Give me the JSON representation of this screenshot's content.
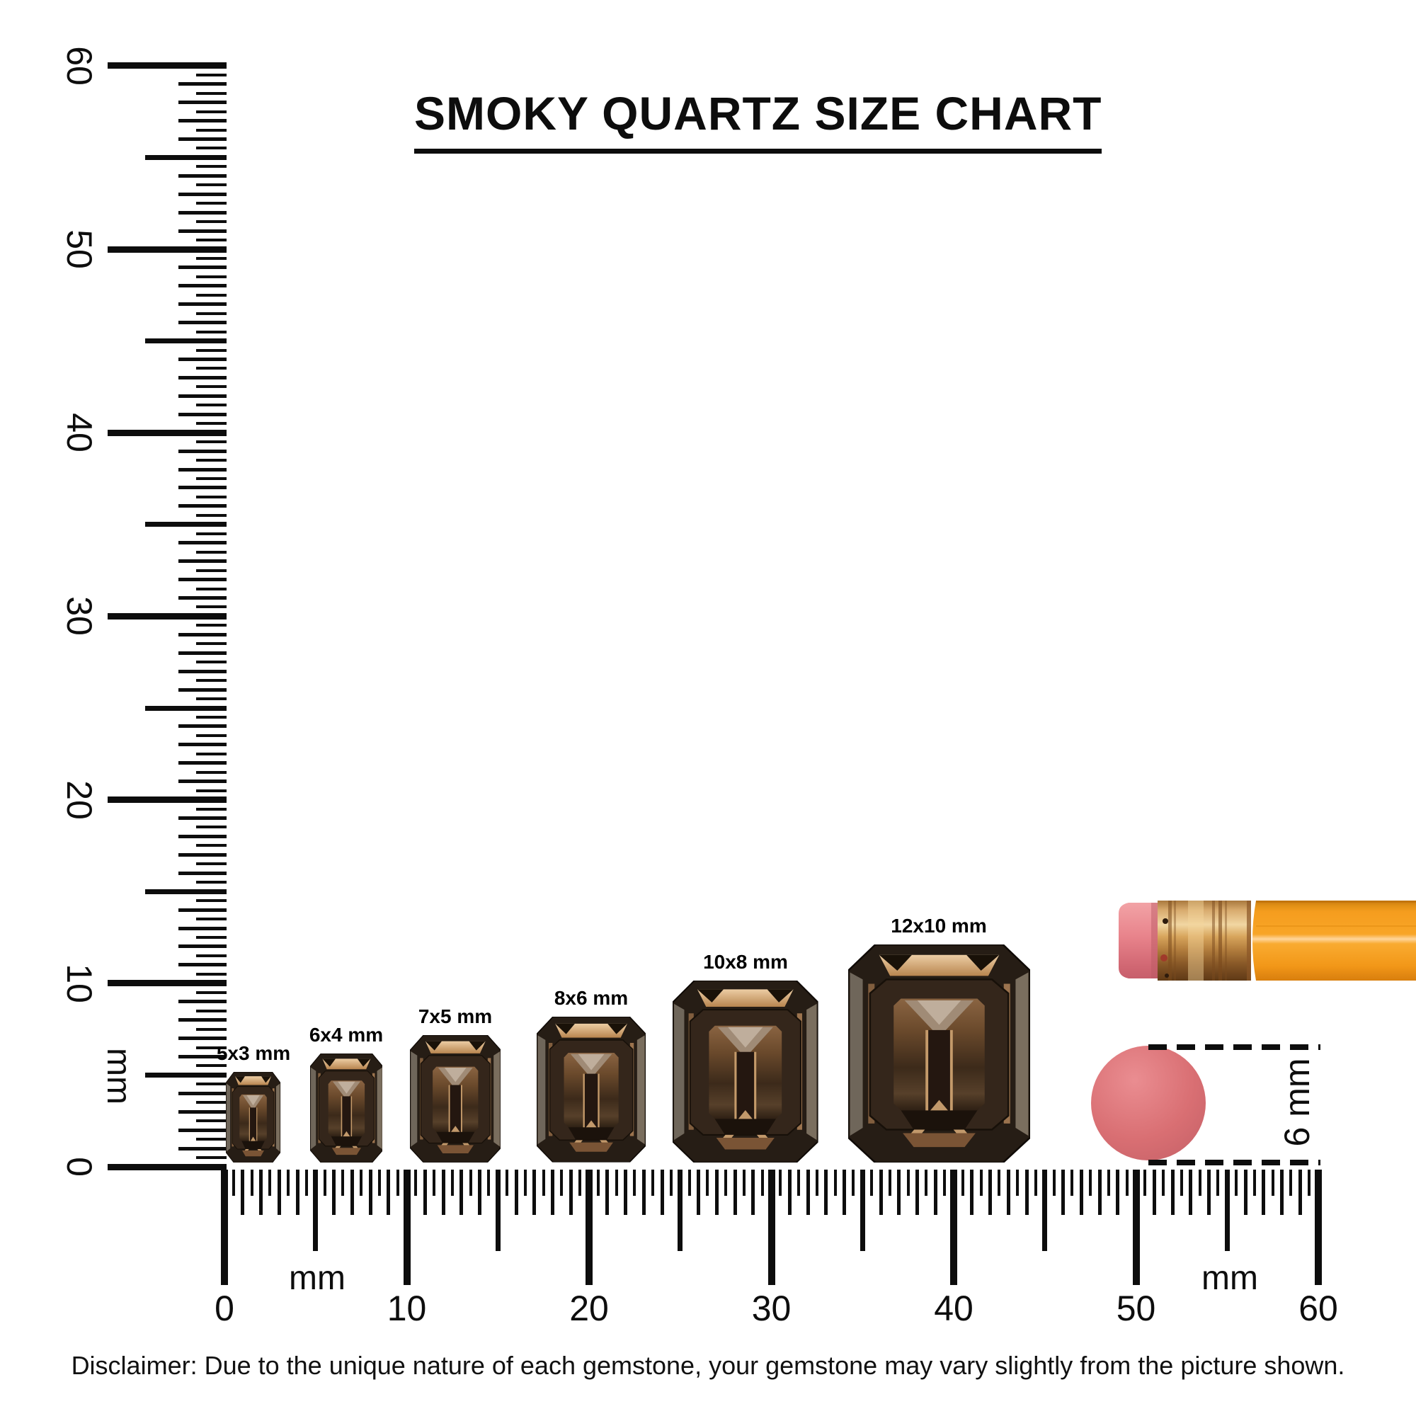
{
  "title": "SMOKY QUARTZ SIZE CHART",
  "left_ruler": {
    "unit": "mm",
    "major_labels": [
      "60",
      "50",
      "40",
      "30",
      "20",
      "10",
      "0"
    ],
    "range_mm": [
      0,
      60
    ],
    "tick_step_mm": 0.5
  },
  "bottom_ruler": {
    "unit_labels": [
      "mm",
      "mm"
    ],
    "major_labels": [
      "0",
      "10",
      "20",
      "30",
      "40",
      "50",
      "60"
    ],
    "range_mm": [
      0,
      60
    ],
    "tick_step_mm": 0.5
  },
  "gems": [
    {
      "label": "5x3 mm",
      "height_mm": 5,
      "width_mm": 3
    },
    {
      "label": "6x4 mm",
      "height_mm": 6,
      "width_mm": 4
    },
    {
      "label": "7x5 mm",
      "height_mm": 7,
      "width_mm": 5
    },
    {
      "label": "8x6 mm",
      "height_mm": 8,
      "width_mm": 6
    },
    {
      "label": "10x8 mm",
      "height_mm": 10,
      "width_mm": 8
    },
    {
      "label": "12x10 mm",
      "height_mm": 12,
      "width_mm": 10
    }
  ],
  "size_reference": {
    "eraser_circle_label": "6 mm"
  },
  "disclaimer": "Disclaimer: Due to the unique nature of each gemstone, your gemstone may vary slightly from the picture shown.",
  "colors": {
    "ink": "#0d0d0d",
    "pencil_orange": "#f59d1e",
    "pencil_orange_dark": "#d97f0e",
    "pencil_highlight": "#ffd59b",
    "eraser_pink": "#e8838b",
    "eraser_pink_dark": "#c75f6c",
    "ferrule_gold": "#d8ab6e",
    "ferrule_gold_dark": "#7a4a1d",
    "eraser_circle_pink": "#d96f73",
    "gem_body_dark": "#261d15",
    "gem_copper": "#c49a6a",
    "gem_copper_light": "#e6c29b"
  }
}
